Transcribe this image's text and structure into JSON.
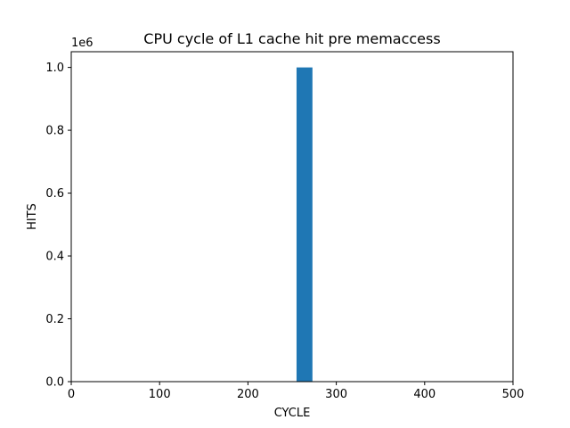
{
  "chart_data": {
    "type": "bar",
    "title": "CPU cycle of L1 cache hit pre memaccess",
    "xlabel": "CYCLE",
    "ylabel": "HITS",
    "y_offset_label": "1e6",
    "y_scale": 1000000,
    "xlim": [
      0,
      500
    ],
    "ylim": [
      0,
      1050000
    ],
    "x_ticks": [
      0,
      100,
      200,
      300,
      400,
      500
    ],
    "x_tick_labels": [
      "0",
      "100",
      "200",
      "300",
      "400",
      "500"
    ],
    "y_ticks": [
      0,
      200000,
      400000,
      600000,
      800000,
      1000000
    ],
    "y_tick_labels": [
      "0.0",
      "0.2",
      "0.4",
      "0.6",
      "0.8",
      "1.0"
    ],
    "bars": [
      {
        "x_start": 255,
        "x_end": 273,
        "value": 1000000
      }
    ],
    "bar_color": "#1f77b4",
    "grid": false,
    "legend": "none"
  }
}
